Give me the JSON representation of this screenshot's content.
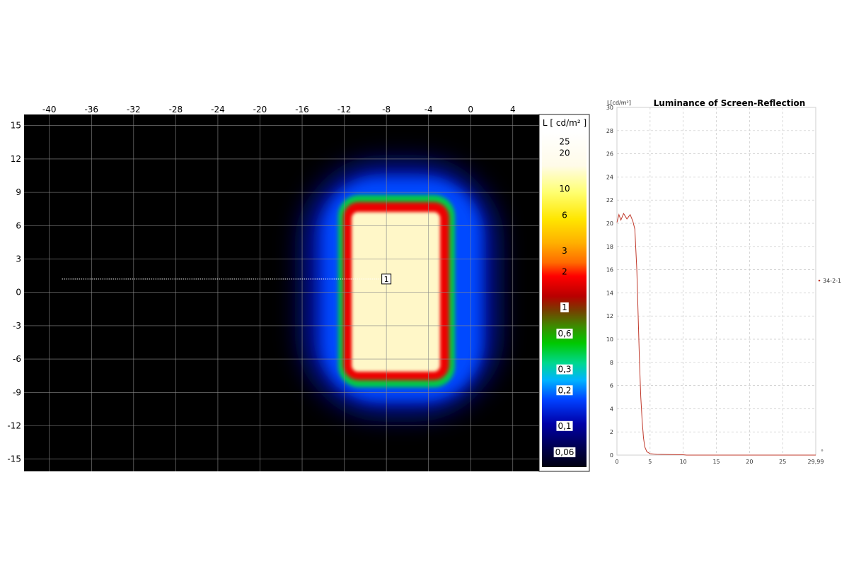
{
  "chart_data": [
    {
      "type": "heatmap",
      "title": "",
      "xlabel": "",
      "ylabel": "",
      "xlim": [
        -42.4,
        6.5
      ],
      "ylim": [
        -16.1,
        16.0
      ],
      "x_ticks": [
        -40,
        -36,
        -32,
        -28,
        -24,
        -20,
        -16,
        -12,
        -8,
        -4,
        0,
        4
      ],
      "y_ticks": [
        15,
        12,
        9,
        6,
        3,
        0,
        -3,
        -6,
        -9,
        -12,
        -15
      ],
      "grid": true,
      "colorbar": {
        "label": "L [ cd/m² ]",
        "scale": "log",
        "ticks": [
          {
            "value": 25,
            "label": "25"
          },
          {
            "value": 20,
            "label": "20"
          },
          {
            "value": 10,
            "label": "10"
          },
          {
            "value": 6,
            "label": "6"
          },
          {
            "value": 3,
            "label": "3"
          },
          {
            "value": 2,
            "label": "2"
          },
          {
            "value": 1,
            "label": "1"
          },
          {
            "value": 0.6,
            "label": "0,6"
          },
          {
            "value": 0.3,
            "label": "0,3"
          },
          {
            "value": 0.2,
            "label": "0,2"
          },
          {
            "value": 0.1,
            "label": "0,1"
          },
          {
            "value": 0.06,
            "label": "0,06"
          }
        ]
      },
      "bright_region": {
        "x_range": [
          -12.2,
          -4.2
        ],
        "y_range": [
          -7.5,
          7.5
        ],
        "luminance": 20.5
      },
      "measurement_line": {
        "x_range": [
          -38.8,
          -8.0
        ],
        "y": 1.2,
        "marker_label": "1"
      }
    },
    {
      "type": "line",
      "title": "Luminance of Screen-Reflection",
      "xlabel": "°",
      "ylabel": "L[cd/m²]",
      "xlim": [
        0,
        29.99
      ],
      "ylim": [
        0,
        30
      ],
      "x_ticks": [
        0,
        5,
        10,
        15,
        20,
        25,
        29.99
      ],
      "x_tick_labels": [
        "0",
        "5",
        "10",
        "15",
        "20",
        "25",
        "29,99"
      ],
      "y_ticks": [
        0,
        2,
        4,
        6,
        8,
        10,
        12,
        14,
        16,
        18,
        20,
        22,
        24,
        26,
        28,
        30
      ],
      "grid": true,
      "legend": "right",
      "series": [
        {
          "name": "34-2-1",
          "color": "#c0392b",
          "x": [
            0,
            0.3,
            0.6,
            1,
            1.5,
            2,
            2.4,
            2.7,
            3.0,
            3.2,
            3.4,
            3.6,
            3.8,
            4.0,
            4.2,
            4.5,
            5,
            6,
            8,
            10,
            10.5,
            15,
            20,
            25,
            29.99
          ],
          "y": [
            20.2,
            20.6,
            20.4,
            20.7,
            20.5,
            20.6,
            20.3,
            19.5,
            16,
            12,
            8,
            5,
            3,
            1.5,
            0.7,
            0.3,
            0.12,
            0.07,
            0.05,
            0.03,
            0,
            0,
            0,
            0,
            0
          ]
        }
      ]
    }
  ]
}
